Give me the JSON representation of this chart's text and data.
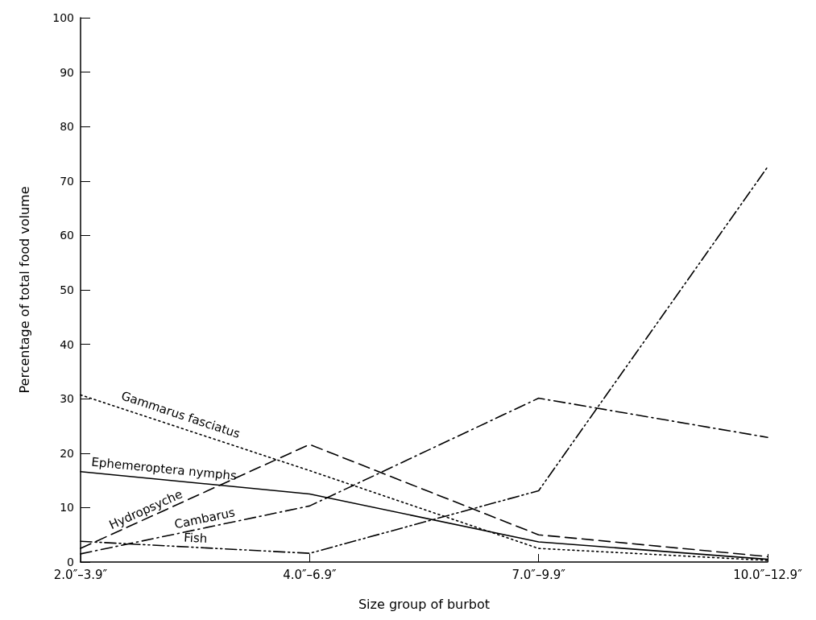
{
  "chart_data": {
    "type": "line",
    "xlabel": "Size group of burbot",
    "ylabel": "Percentage of total food volume",
    "categories": [
      "2.0″–3.9″",
      "4.0″–6.9″",
      "7.0″–9.9″",
      "10.0″–12.9″"
    ],
    "series": [
      {
        "name": "Gammarus fasciatus",
        "color": "#000000",
        "line_style": "dotted",
        "values": [
          30.7,
          16.8,
          2.5,
          0.3
        ]
      },
      {
        "name": "Ephemeroptera nymphs",
        "color": "#000000",
        "line_style": "solid",
        "values": [
          16.6,
          12.5,
          3.7,
          0.5
        ]
      },
      {
        "name": "Hydropsyche",
        "color": "#000000",
        "line_style": "dashed",
        "values": [
          2.5,
          21.6,
          5.0,
          1.0
        ]
      },
      {
        "name": "Cambarus",
        "color": "#000000",
        "line_style": "dashdot",
        "values": [
          1.5,
          10.3,
          30.1,
          22.9
        ]
      },
      {
        "name": "Fish",
        "color": "#000000",
        "line_style": "dashdotdot",
        "values": [
          3.8,
          1.6,
          13.1,
          72.6
        ]
      }
    ],
    "ylim": [
      0,
      100
    ],
    "yticks": [
      0,
      10,
      20,
      30,
      40,
      50,
      60,
      70,
      80,
      90,
      100
    ],
    "grid": false,
    "legend": false,
    "marker": "none"
  }
}
